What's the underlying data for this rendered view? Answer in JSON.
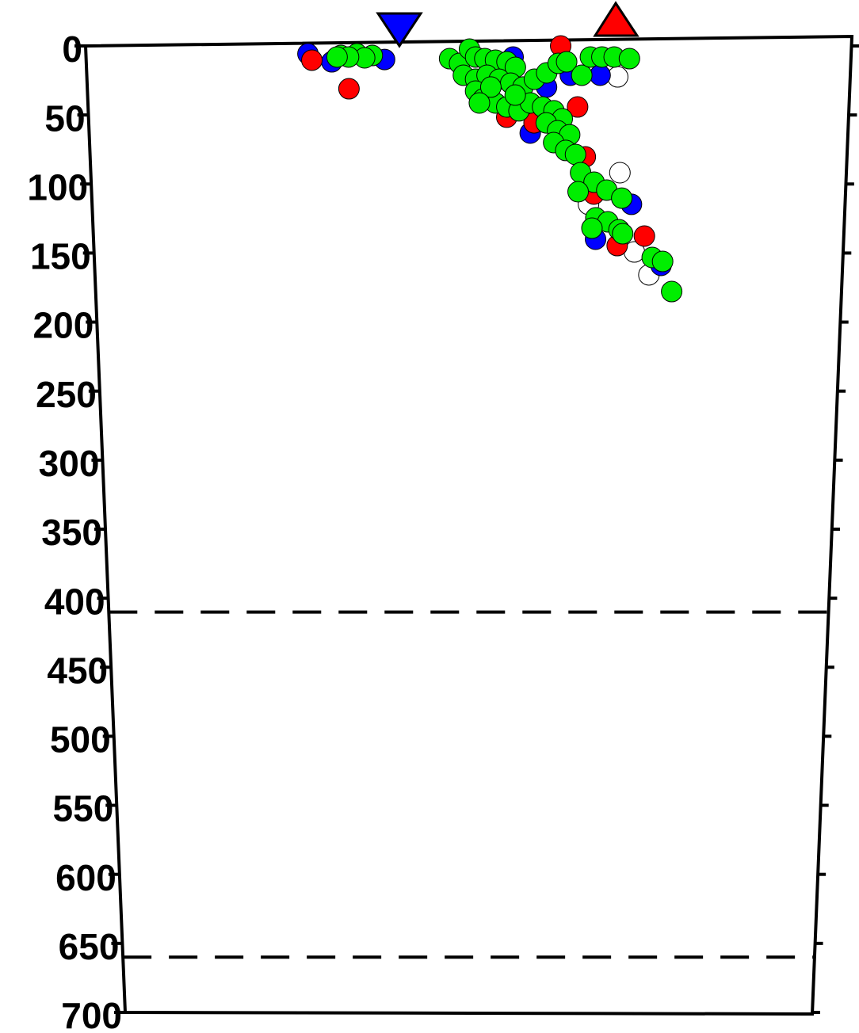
{
  "chart_data": {
    "type": "scatter",
    "xlim": [
      0,
      100
    ],
    "ylim": [
      0,
      700
    ],
    "yticks": [
      0,
      50,
      100,
      150,
      200,
      250,
      300,
      350,
      400,
      450,
      500,
      550,
      600,
      650,
      700
    ],
    "reference_lines": [
      410,
      660
    ],
    "series": [
      {
        "color": "#ffffff",
        "x": [
          69.5,
          70.0,
          65.9,
          74.1,
          72.1
        ],
        "values": [
          22.4,
          91.8,
          114.7,
          165.8,
          149.2
        ]
      },
      {
        "color": "#0000ff",
        "x": [
          29.0,
          32.1,
          39.0,
          55.8,
          58.1,
          63.3,
          67.2,
          71.6,
          66.9,
          75.7,
          60.2
        ],
        "values": [
          5.7,
          11.5,
          9.8,
          8.0,
          63.1,
          21.2,
          21.2,
          114.7,
          140.0,
          158.9,
          29.8
        ]
      },
      {
        "color": "#ff0000",
        "x": [
          29.5,
          34.3,
          62.0,
          64.3,
          55.0,
          65.4,
          66.6,
          73.4,
          69.8,
          58.6
        ],
        "values": [
          10.3,
          31.0,
          0,
          44.2,
          51.6,
          80.3,
          107.3,
          137.7,
          144.6,
          55.7
        ]
      },
      {
        "color": "#00ee00",
        "x": [
          33.3,
          35.4,
          37.4,
          36.4,
          34.3,
          32.8,
          47.5,
          48.8,
          50.1,
          50.9,
          52.1,
          53.5,
          55.0,
          56.1,
          49.3,
          50.9,
          52.4,
          54.0,
          55.5,
          57.1,
          58.6,
          60.2,
          61.7,
          62.8,
          64.8,
          65.9,
          67.4,
          69.0,
          71.0,
          50.9,
          51.9,
          53.5,
          55.0,
          56.6,
          58.1,
          59.7,
          61.2,
          62.3,
          60.2,
          61.7,
          63.3,
          61.2,
          62.8,
          64.1,
          64.8,
          66.6,
          68.3,
          64.5,
          70.3,
          66.9,
          68.5,
          70.0,
          66.4,
          70.5,
          74.5,
          75.9,
          77.2,
          52.9,
          51.4,
          56.1
        ],
        "values": [
          6.9,
          5.7,
          6.9,
          8.6,
          8.0,
          8.0,
          9.2,
          12.6,
          2.3,
          8.0,
          9.2,
          10.3,
          11.5,
          15.5,
          21.2,
          24.1,
          21.2,
          24.1,
          27.0,
          29.8,
          24.1,
          19.5,
          12.6,
          11.5,
          21.2,
          8.0,
          8.0,
          8.0,
          9.2,
          32.7,
          38.4,
          41.3,
          44.2,
          47.0,
          41.3,
          44.2,
          47.0,
          52.8,
          55.7,
          61.4,
          64.3,
          70.0,
          75.7,
          78.6,
          91.8,
          98.7,
          104.4,
          105.6,
          110.2,
          124.5,
          127.4,
          133.1,
          132.0,
          136.0,
          153.2,
          156.1,
          177.9,
          29.8,
          41.3,
          35.6
        ]
      }
    ]
  }
}
